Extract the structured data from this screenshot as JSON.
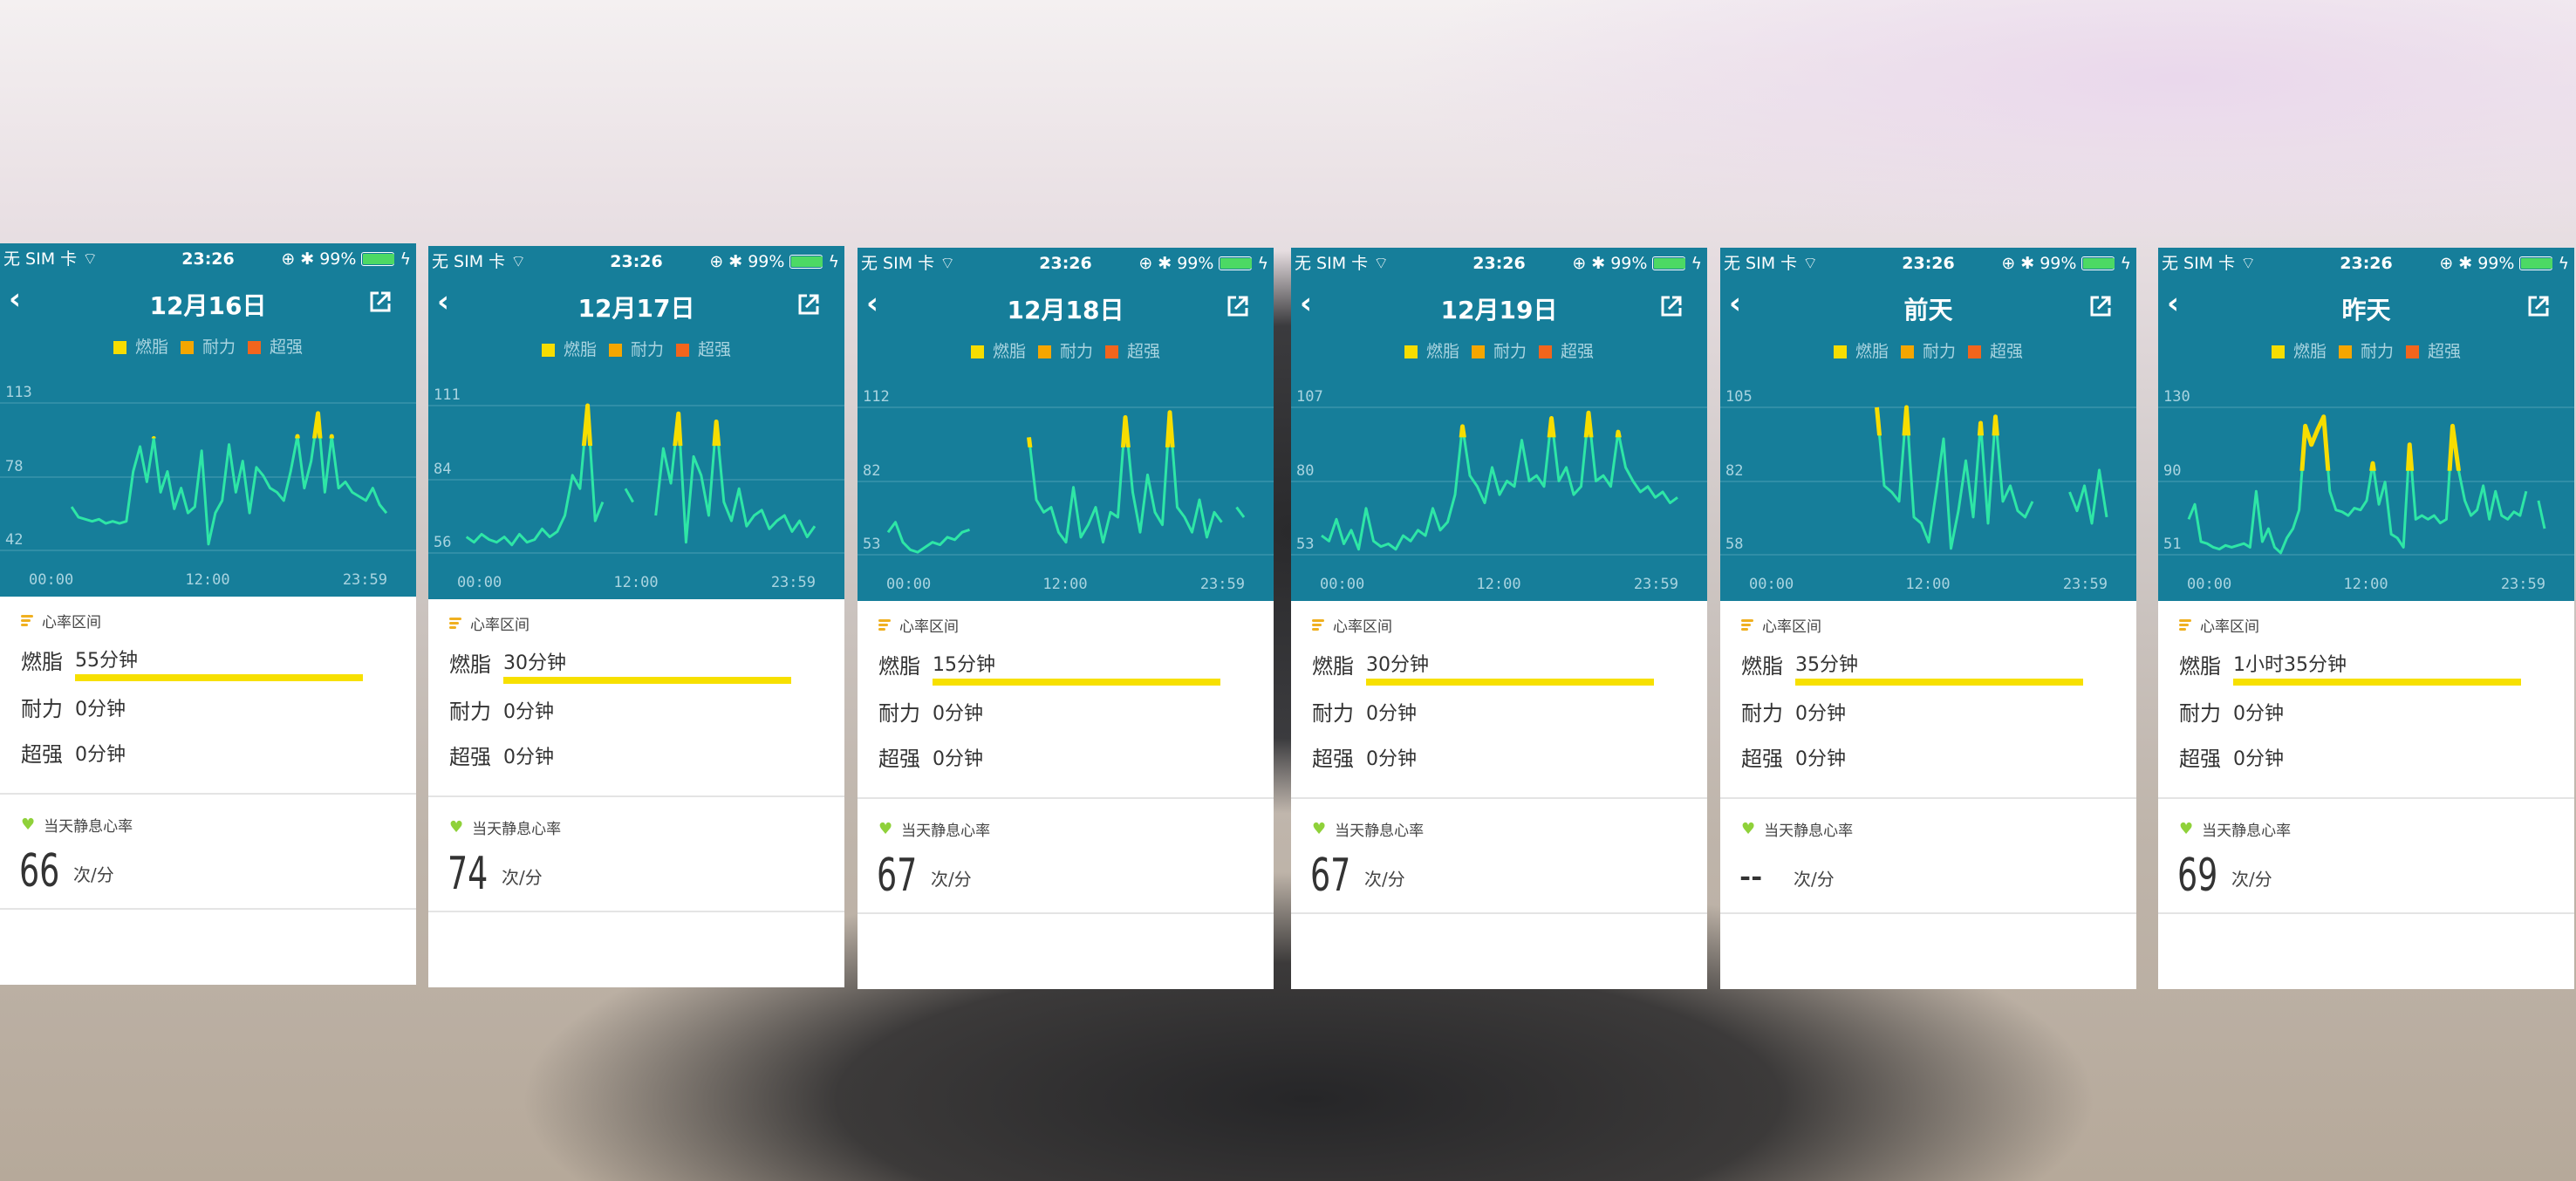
{
  "status_bar": {
    "carrier": "无 SIM 卡",
    "time": "23:26",
    "battery": "99%",
    "battery_level": 0.99
  },
  "legend": [
    {
      "label": "燃脂",
      "color": "#f7dd00"
    },
    {
      "label": "耐力",
      "color": "#f5a600"
    },
    {
      "label": "超强",
      "color": "#f2651c"
    }
  ],
  "zone_section_title": "心率区间",
  "zone_labels": [
    "燃脂",
    "耐力",
    "超强"
  ],
  "rest_title": "当天静息心率",
  "rest_unit": "次/分",
  "colors": {
    "header": "#167e9a",
    "line": "#2ee6a6",
    "fat_burn": "#f7dd00"
  },
  "fat_burn_threshold_bpm": 96,
  "panels": [
    {
      "title": "12月16日",
      "zones": [
        "55分钟",
        "0分钟",
        "0分钟"
      ],
      "fat_burn_fill": 1,
      "rest": "66",
      "chart_data": {
        "type": "line",
        "x_ticks": [
          "00:00",
          "12:00",
          "23:59"
        ],
        "y_ticks": [
          42,
          78,
          113
        ],
        "ylim": [
          42,
          113
        ],
        "values": [
          null,
          null,
          null,
          null,
          null,
          null,
          63,
          58,
          57,
          56,
          57,
          55,
          56,
          55,
          56,
          80,
          92,
          75,
          96,
          70,
          80,
          62,
          72,
          60,
          63,
          90,
          45,
          60,
          66,
          93,
          70,
          85,
          60,
          82,
          78,
          72,
          70,
          66,
          80,
          97,
          72,
          85,
          108,
          70,
          97,
          72,
          75,
          70,
          68,
          66,
          72,
          64,
          60
        ]
      }
    },
    {
      "title": "12月17日",
      "zones": [
        "30分钟",
        "0分钟",
        "0分钟"
      ],
      "fat_burn_fill": 1,
      "rest": "74",
      "chart_data": {
        "type": "line",
        "x_ticks": [
          "00:00",
          "12:00",
          "23:59"
        ],
        "y_ticks": [
          56,
          84,
          111
        ],
        "ylim": [
          56,
          111
        ],
        "values": [
          null,
          62,
          60,
          63,
          61,
          60,
          62,
          59,
          63,
          60,
          61,
          65,
          62,
          64,
          70,
          85,
          80,
          111,
          68,
          75,
          null,
          null,
          80,
          75,
          null,
          null,
          70,
          95,
          82,
          108,
          60,
          92,
          85,
          70,
          105,
          75,
          68,
          80,
          66,
          70,
          72,
          65,
          68,
          70,
          64,
          68,
          62,
          66
        ]
      }
    },
    {
      "title": "12月18日",
      "zones": [
        "15分钟",
        "0分钟",
        "0分钟"
      ],
      "fat_burn_fill": 1,
      "rest": "67",
      "chart_data": {
        "type": "line",
        "x_ticks": [
          "00:00",
          "12:00",
          "23:59"
        ],
        "y_ticks": [
          53,
          82,
          112
        ],
        "ylim": [
          53,
          112
        ],
        "values": [
          62,
          66,
          58,
          55,
          54,
          56,
          58,
          57,
          60,
          59,
          62,
          63,
          null,
          null,
          null,
          null,
          null,
          null,
          null,
          100,
          75,
          70,
          72,
          62,
          58,
          80,
          60,
          65,
          72,
          58,
          70,
          68,
          108,
          78,
          62,
          85,
          70,
          65,
          110,
          72,
          68,
          62,
          75,
          60,
          70,
          66,
          null,
          72,
          68
        ]
      }
    },
    {
      "title": "12月19日",
      "zones": [
        "30分钟",
        "0分钟",
        "0分钟"
      ],
      "fat_burn_fill": 1,
      "rest": "67",
      "chart_data": {
        "type": "line",
        "x_ticks": [
          "00:00",
          "12:00",
          "23:59"
        ],
        "y_ticks": [
          53,
          80,
          107
        ],
        "ylim": [
          53,
          107
        ],
        "values": [
          60,
          58,
          66,
          57,
          62,
          55,
          70,
          58,
          56,
          57,
          55,
          60,
          58,
          62,
          60,
          70,
          62,
          65,
          75,
          100,
          82,
          78,
          72,
          85,
          75,
          80,
          78,
          95,
          80,
          82,
          78,
          103,
          80,
          85,
          75,
          78,
          105,
          80,
          82,
          78,
          98,
          85,
          80,
          76,
          78,
          74,
          76,
          72,
          74
        ]
      }
    },
    {
      "title": "前天",
      "zones": [
        "35分钟",
        "0分钟",
        "0分钟"
      ],
      "fat_burn_fill": 1,
      "rest": "--",
      "chart_data": {
        "type": "line",
        "x_ticks": [
          "00:00",
          "12:00",
          "23:59"
        ],
        "y_ticks": [
          58,
          82,
          105
        ],
        "ylim": [
          58,
          105
        ],
        "values": [
          null,
          null,
          null,
          null,
          null,
          null,
          null,
          null,
          null,
          null,
          null,
          null,
          null,
          null,
          null,
          null,
          null,
          105,
          80,
          78,
          75,
          105,
          70,
          68,
          62,
          78,
          95,
          60,
          72,
          88,
          70,
          100,
          68,
          102,
          75,
          80,
          72,
          70,
          75,
          null,
          null,
          null,
          null,
          78,
          72,
          80,
          68,
          85,
          70
        ]
      }
    },
    {
      "title": "昨天",
      "zones": [
        "1小时35分钟",
        "0分钟",
        "0分钟"
      ],
      "fat_burn_fill": 1,
      "rest": "69",
      "chart_data": {
        "type": "line",
        "x_ticks": [
          "00:00",
          "12:00",
          "23:59"
        ],
        "y_ticks": [
          51,
          90,
          130
        ],
        "ylim": [
          51,
          130
        ],
        "values": [
          70,
          78,
          58,
          57,
          55,
          54,
          56,
          55,
          56,
          57,
          55,
          85,
          58,
          65,
          55,
          52,
          60,
          65,
          75,
          120,
          110,
          118,
          125,
          85,
          75,
          74,
          72,
          76,
          75,
          80,
          100,
          78,
          90,
          62,
          60,
          55,
          110,
          70,
          72,
          70,
          72,
          68,
          70,
          120,
          96,
          80,
          72,
          75,
          88,
          70,
          85,
          72,
          70,
          74,
          72,
          85,
          null,
          80,
          65
        ]
      }
    }
  ]
}
